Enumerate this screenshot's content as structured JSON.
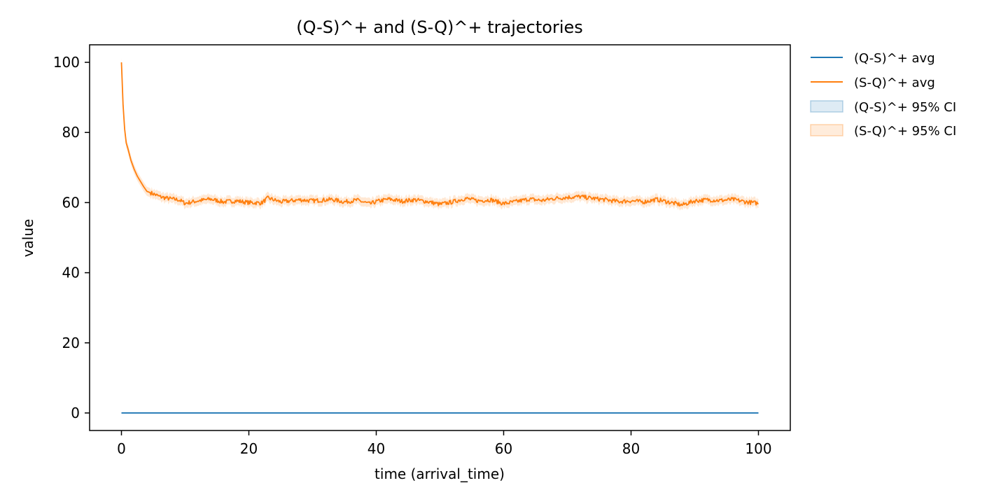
{
  "chart_data": {
    "type": "line",
    "title": "(Q-S)^+ and (S-Q)^+ trajectories",
    "xlabel": "time (arrival_time)",
    "ylabel": "value",
    "xlim": [
      -5,
      105
    ],
    "ylim": [
      -5,
      105
    ],
    "xticks": [
      0,
      20,
      40,
      60,
      80,
      100
    ],
    "yticks": [
      0,
      20,
      40,
      60,
      80,
      100
    ],
    "grid": false,
    "legend_position": "outside-top-right",
    "series": [
      {
        "name": "(Q-S)^+ avg",
        "color": "#1f77b4",
        "x": [
          0,
          100
        ],
        "y": [
          0,
          0
        ]
      },
      {
        "name": "(S-Q)^+ avg",
        "color": "#ff7f0e",
        "x": [
          0,
          0.25,
          0.5,
          0.75,
          1,
          1.5,
          2,
          2.5,
          3,
          3.5,
          4,
          5,
          6,
          7,
          8,
          9,
          10,
          12,
          14,
          16,
          18,
          20,
          22,
          23,
          25,
          28,
          30,
          33,
          35,
          37,
          39,
          40,
          42,
          44,
          46,
          48,
          50,
          52,
          54,
          56,
          58,
          60,
          62,
          64,
          66,
          68,
          70,
          72,
          74,
          76,
          78,
          80,
          82,
          84,
          86,
          88,
          90,
          92,
          94,
          96,
          98,
          100
        ],
        "y": [
          100,
          88,
          81,
          77,
          75.5,
          72,
          69.5,
          67.5,
          66,
          64.5,
          63.2,
          62.5,
          61.7,
          61.3,
          61,
          60.8,
          59.8,
          60.5,
          61,
          60.2,
          60.5,
          60,
          59.9,
          61.3,
          60.2,
          60.8,
          60.5,
          60.9,
          60.2,
          60.7,
          59.6,
          60.3,
          61,
          60.4,
          60.8,
          60.3,
          59.5,
          60.2,
          61.2,
          60.5,
          60.8,
          59.7,
          60.3,
          61,
          60.6,
          61.2,
          61.5,
          61.7,
          61.2,
          60.8,
          60.3,
          60.5,
          60.2,
          60.9,
          60.1,
          59.3,
          60.5,
          60.8,
          60.6,
          60.9,
          60.2,
          59.8
        ]
      }
    ],
    "ci_bands": [
      {
        "name": "(Q-S)^+ 95% CI",
        "color": "#1f77b4",
        "half_width": 0
      },
      {
        "name": "(S-Q)^+ 95% CI",
        "color": "#ff7f0e",
        "half_width": 1.3
      }
    ]
  }
}
